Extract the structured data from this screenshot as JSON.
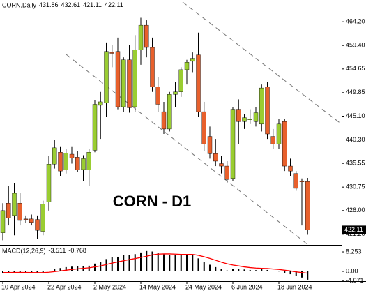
{
  "chart_data": [
    {
      "type": "candlestick",
      "title": "CORN,Daily",
      "annotation": "CORN - D1",
      "categories": [
        "10 Apr 2024",
        null,
        null,
        null,
        null,
        null,
        null,
        null,
        "22 Apr 2024",
        null,
        null,
        null,
        null,
        null,
        null,
        null,
        "2 May 2024",
        null,
        null,
        null,
        null,
        null,
        null,
        null,
        "14 May 2024",
        null,
        null,
        null,
        null,
        null,
        null,
        null,
        "24 May 2024",
        null,
        null,
        null,
        null,
        null,
        null,
        null,
        "6 Jun 2024",
        null,
        null,
        null,
        null,
        null,
        null,
        null,
        "18 Jun 2024",
        null,
        null,
        null,
        null,
        null
      ],
      "open": [
        421.5,
        427.5,
        425.0,
        427.5,
        424.3,
        424.3,
        424.2,
        421.8,
        427.7,
        435.4,
        437.8,
        434.2,
        437.4,
        436.8,
        434.3,
        434.2,
        438.2,
        447.3,
        447.8,
        458.0,
        458.2,
        447.0,
        456.5,
        447.0,
        458.5,
        463.5,
        459.0,
        451.0,
        446.0,
        442.5,
        449.5,
        450.0,
        454.5,
        456.2,
        457.5,
        446.0,
        441.0,
        437.5,
        435.5,
        435.0,
        432.5,
        446.5,
        444.0,
        444.5,
        444.0,
        443.5,
        451.0,
        441.0,
        439.5,
        444.0,
        435.0,
        433.5,
        432.0,
        431.86
      ],
      "high": [
        427.5,
        431.0,
        431.5,
        429.5,
        425.0,
        425.2,
        425.0,
        428.0,
        437.0,
        440.3,
        439.0,
        438.5,
        439.0,
        438.0,
        437.2,
        438.5,
        448.3,
        450.0,
        460.0,
        459.5,
        461.0,
        457.0,
        459.5,
        461.5,
        465.0,
        464.5,
        461.0,
        453.0,
        448.0,
        450.0,
        452.0,
        455.0,
        456.5,
        458.0,
        462.0,
        448.0,
        443.0,
        440.5,
        437.0,
        436.0,
        447.0,
        448.5,
        445.5,
        446.5,
        447.0,
        451.5,
        452.0,
        442.5,
        444.5,
        444.5,
        436.5,
        434.0,
        432.5,
        432.61
      ],
      "low": [
        420.0,
        423.0,
        421.0,
        423.0,
        423.5,
        423.0,
        420.3,
        421.0,
        426.0,
        434.5,
        433.0,
        433.5,
        435.5,
        433.8,
        432.0,
        431.0,
        437.8,
        440.5,
        445.0,
        455.0,
        446.5,
        446.0,
        445.8,
        446.0,
        455.5,
        457.0,
        450.0,
        446.0,
        441.5,
        442.0,
        447.0,
        449.0,
        451.5,
        454.0,
        445.0,
        438.0,
        436.5,
        435.0,
        433.5,
        431.5,
        432.0,
        439.5,
        442.5,
        443.5,
        443.0,
        442.0,
        440.5,
        438.5,
        438.5,
        434.0,
        433.0,
        430.0,
        423.0,
        421.11
      ],
      "close": [
        426.0,
        424.5,
        429.5,
        424.0,
        424.2,
        423.6,
        422.0,
        427.3,
        435.4,
        438.7,
        434.0,
        437.6,
        436.6,
        434.2,
        436.5,
        437.8,
        447.5,
        448.0,
        458.2,
        457.8,
        447.0,
        456.5,
        446.8,
        458.5,
        463.5,
        459.0,
        451.0,
        447.5,
        442.5,
        449.5,
        450.0,
        454.5,
        456.0,
        456.8,
        446.0,
        439.5,
        437.5,
        436.0,
        435.0,
        432.3,
        446.5,
        444.0,
        444.8,
        444.5,
        445.8,
        450.8,
        441.5,
        439.5,
        443.5,
        435.0,
        434.0,
        430.5,
        431.8,
        422.11
      ],
      "up_color": "#9acd32",
      "down_color": "#e8602c",
      "ylim": [
        419.2,
        468.6
      ],
      "yticks": [
        {
          "value": 421.2,
          "label": "421.20"
        },
        {
          "value": 426.0,
          "label": "426.00"
        },
        430.75,
        435.55,
        {
          "value": 440.3,
          "label": "440.30"
        },
        {
          "value": 445.1,
          "label": "445.10"
        },
        449.85,
        454.65,
        {
          "value": 459.4,
          "label": "459.40"
        },
        {
          "value": 464.2,
          "label": "464.20"
        }
      ]
    },
    {
      "type": "macd",
      "name": "MACD(12,26,9)",
      "histogram": {
        "color": "#000000",
        "values": [
          -0.6,
          -0.5,
          -0.3,
          -0.4,
          -0.5,
          -0.6,
          -0.7,
          -0.5,
          0.2,
          1.0,
          1.4,
          1.8,
          2.0,
          2.1,
          2.2,
          2.4,
          3.3,
          4.1,
          5.2,
          6.0,
          6.2,
          6.8,
          6.9,
          7.3,
          8.0,
          8.6,
          8.4,
          7.9,
          7.2,
          7.0,
          6.9,
          7.0,
          7.1,
          7.2,
          5.5,
          4.0,
          2.8,
          1.8,
          1.0,
          0.4,
          0.9,
          0.9,
          0.8,
          0.6,
          0.5,
          0.9,
          0.6,
          0.2,
          0.1,
          -0.6,
          -1.2,
          -1.9,
          -2.6,
          -3.511
        ]
      },
      "signal": {
        "color": "#ff0000",
        "values": [
          -0.5,
          -0.5,
          -0.45,
          -0.44,
          -0.45,
          -0.48,
          -0.52,
          -0.52,
          -0.37,
          -0.1,
          0.2,
          0.5,
          0.8,
          1.05,
          1.3,
          1.5,
          1.9,
          2.3,
          2.9,
          3.5,
          4.0,
          4.5,
          5.0,
          5.4,
          5.9,
          6.4,
          7.0,
          7.3,
          7.4,
          7.4,
          7.3,
          7.2,
          7.2,
          7.2,
          6.8,
          6.2,
          5.5,
          4.7,
          3.9,
          3.2,
          2.7,
          2.3,
          1.9,
          1.6,
          1.4,
          1.3,
          1.2,
          1.0,
          0.8,
          0.5,
          0.2,
          -0.2,
          -0.5,
          -0.768
        ]
      },
      "ylim": [
        -4.13,
        10.62
      ],
      "yticks": [
        -4.071,
        {
          "value": 0,
          "label": "0.00"
        },
        8.253
      ]
    }
  ]
}
